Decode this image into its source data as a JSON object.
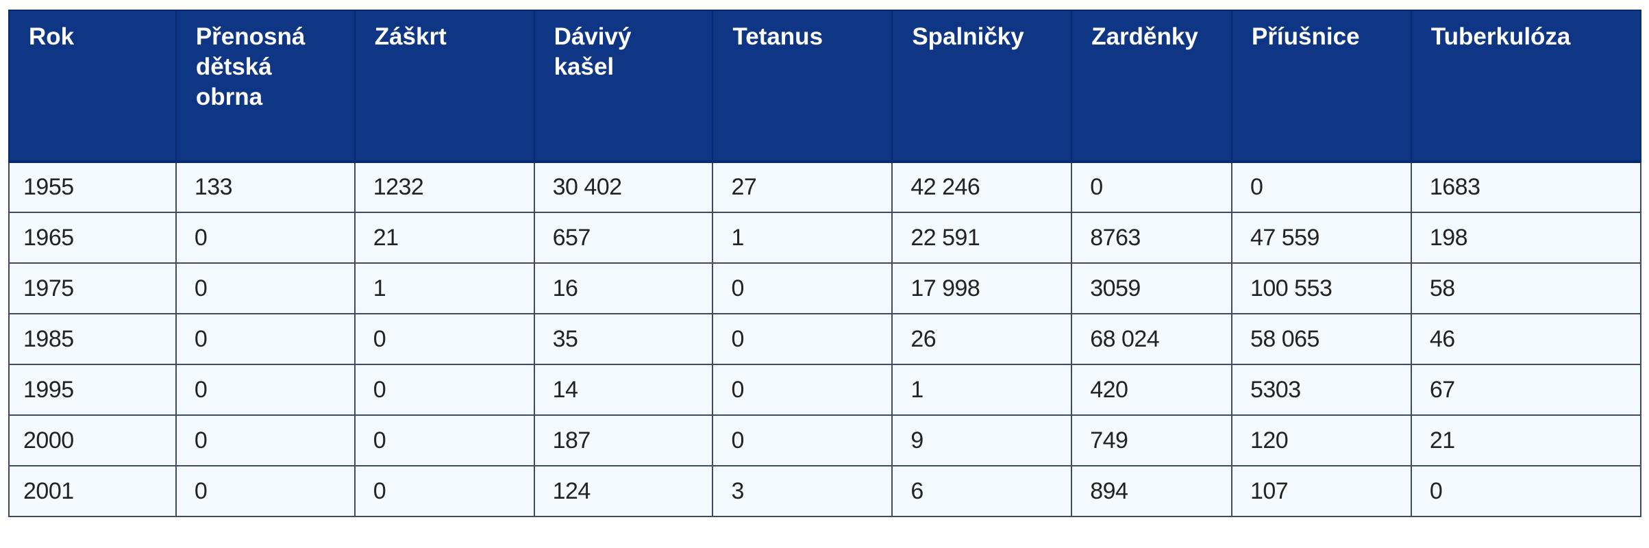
{
  "table": {
    "headers": [
      "Rok",
      "Přenosná\ndětská\nobrna",
      "Záškrt",
      "Dávivý\nkašel",
      "Tetanus",
      "Spalničky",
      "Zarděnky",
      "Příušnice",
      "Tuberkulóza"
    ],
    "rows": [
      [
        "1955",
        "133",
        "1232",
        "30 402",
        "27",
        "42 246",
        "0",
        "0",
        "1683"
      ],
      [
        "1965",
        "0",
        "21",
        "657",
        "1",
        "22 591",
        "8763",
        "47 559",
        "198"
      ],
      [
        "1975",
        "0",
        "1",
        "16",
        "0",
        "17 998",
        "3059",
        "100 553",
        "58"
      ],
      [
        "1985",
        "0",
        "0",
        "35",
        "0",
        "26",
        "68 024",
        "58 065",
        "46"
      ],
      [
        "1995",
        "0",
        "0",
        "14",
        "0",
        "1",
        "420",
        "5303",
        "67"
      ],
      [
        "2000",
        "0",
        "0",
        "187",
        "0",
        "9",
        "749",
        "120",
        "21"
      ],
      [
        "2001",
        "0",
        "0",
        "124",
        "3",
        "6",
        "894",
        "107",
        "0"
      ]
    ]
  },
  "colors": {
    "header_bg": "#0f3585",
    "header_text": "#ffffff",
    "cell_bg": "#f3f9fd",
    "cell_text": "#222222",
    "border": "#3e4a5e"
  }
}
